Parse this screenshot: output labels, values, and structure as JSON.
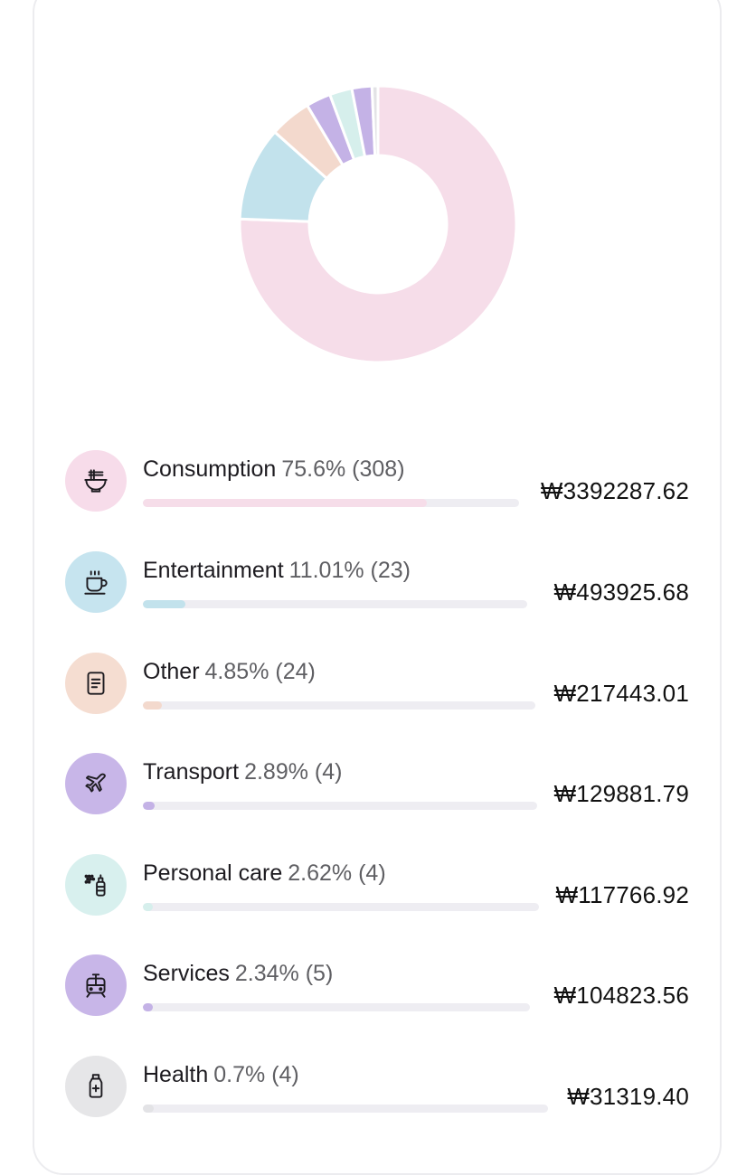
{
  "categories": [
    {
      "name": "Consumption",
      "percent_label": "75.6%",
      "count_label": "(308)",
      "amount": "₩3392287.62",
      "share": 0.756,
      "color": "#f6dde9",
      "icon_bg": "#f7dcea",
      "icon": "noodle-bowl-icon"
    },
    {
      "name": "Entertainment",
      "percent_label": "11.01%",
      "count_label": "(23)",
      "amount": "₩493925.68",
      "share": 0.1101,
      "color": "#c2e2ec",
      "icon_bg": "#c6e4ef",
      "icon": "coffee-cup-icon"
    },
    {
      "name": "Other",
      "percent_label": "4.85%",
      "count_label": "(24)",
      "amount": "₩217443.01",
      "share": 0.0485,
      "color": "#f3d9cd",
      "icon_bg": "#f5ddd1",
      "icon": "receipt-icon"
    },
    {
      "name": "Transport",
      "percent_label": "2.89%",
      "count_label": "(4)",
      "amount": "₩129881.79",
      "share": 0.0289,
      "color": "#c4b2e6",
      "icon_bg": "#c8b6e8",
      "icon": "airplane-icon"
    },
    {
      "name": "Personal care",
      "percent_label": "2.62%",
      "count_label": "(4)",
      "amount": "₩117766.92",
      "share": 0.0262,
      "color": "#d6efec",
      "icon_bg": "#d8f0ee",
      "icon": "spray-bottle-icon"
    },
    {
      "name": "Services",
      "percent_label": "2.34%",
      "count_label": "(5)",
      "amount": "₩104823.56",
      "share": 0.0234,
      "color": "#c4b2e6",
      "icon_bg": "#c8b6e8",
      "icon": "train-icon"
    },
    {
      "name": "Health",
      "percent_label": "0.7%",
      "count_label": "(4)",
      "amount": "₩31319.40",
      "share": 0.007,
      "color": "#e3e3e6",
      "icon_bg": "#e6e6e8",
      "icon": "medicine-bottle-icon"
    }
  ]
}
